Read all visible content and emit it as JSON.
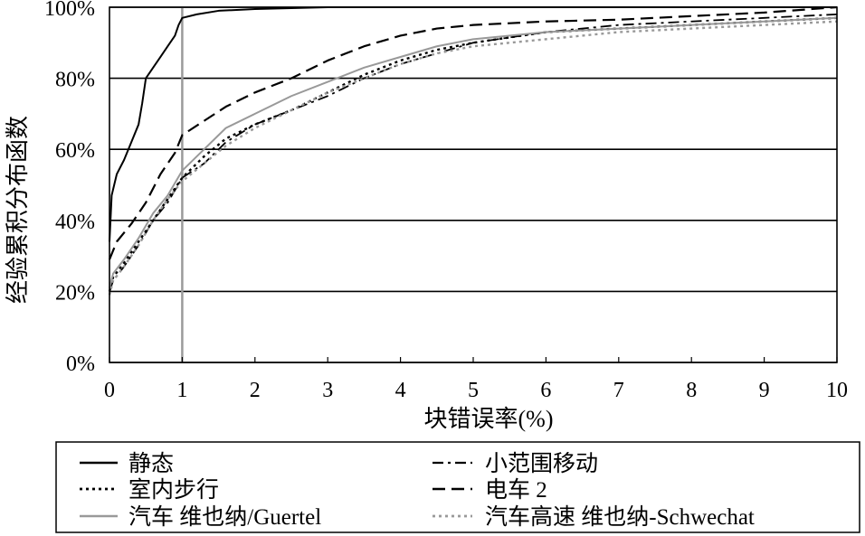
{
  "chart_data": {
    "type": "line",
    "title": "",
    "xlabel": "块错误率(%)",
    "ylabel": "经验累积分布函数",
    "xlim": [
      0,
      10
    ],
    "ylim": [
      0,
      100
    ],
    "x_ticks": [
      "0",
      "1",
      "2",
      "3",
      "4",
      "5",
      "6",
      "7",
      "8",
      "9",
      "10"
    ],
    "y_ticks": [
      "0%",
      "20%",
      "40%",
      "60%",
      "80%",
      "100%"
    ],
    "grid": "horizontal",
    "reference_line_x": 1,
    "legend_position": "bottom",
    "series": [
      {
        "name": "静态",
        "style": "solid",
        "color": "#000000",
        "x": [
          0,
          0.03,
          0.1,
          0.2,
          0.3,
          0.4,
          0.45,
          0.5,
          0.6,
          0.7,
          0.8,
          0.9,
          0.95,
          1.0,
          1.2,
          1.5,
          2,
          3,
          10
        ],
        "y": [
          34,
          47,
          53,
          57,
          62,
          67,
          73,
          80,
          83,
          86,
          89,
          92,
          95,
          97,
          98,
          99,
          99.5,
          100,
          100
        ]
      },
      {
        "name": "小范围移动",
        "style": "dashdot",
        "color": "#000000",
        "x": [
          0,
          0.05,
          0.2,
          0.4,
          0.6,
          0.8,
          1.0,
          1.3,
          1.6,
          2.0,
          2.5,
          3.0,
          3.5,
          4.0,
          4.5,
          5,
          6,
          7,
          8,
          9,
          10
        ],
        "y": [
          20,
          23,
          27,
          33,
          40,
          45,
          52,
          56,
          62,
          67,
          71,
          75,
          80,
          84,
          87,
          90,
          93,
          95,
          96,
          97,
          98
        ]
      },
      {
        "name": "室内步行",
        "style": "dotted",
        "color": "#000000",
        "x": [
          0,
          0.05,
          0.2,
          0.4,
          0.6,
          0.8,
          1.0,
          1.3,
          1.6,
          2.0,
          2.5,
          3.0,
          3.5,
          4.0,
          4.5,
          5,
          6,
          7,
          8,
          9,
          10
        ],
        "y": [
          20,
          24,
          28,
          34,
          40,
          46,
          52,
          58,
          63,
          67,
          71,
          76,
          81,
          85,
          88,
          90,
          93,
          94,
          95,
          96,
          97
        ]
      },
      {
        "name": "电车 2",
        "style": "dashed",
        "color": "#000000",
        "x": [
          0,
          0.1,
          0.3,
          0.5,
          0.7,
          0.9,
          1.0,
          1.3,
          1.6,
          2.0,
          2.5,
          3.0,
          3.5,
          4.0,
          4.5,
          5,
          6,
          7,
          8,
          9,
          10
        ],
        "y": [
          29,
          34,
          39,
          45,
          53,
          59,
          64,
          68,
          72,
          76,
          80,
          85,
          89,
          92,
          94,
          95,
          96,
          96.5,
          97.5,
          98.5,
          100
        ]
      },
      {
        "name": "汽车 维也纳/Guertel",
        "style": "solid",
        "color": "#999999",
        "x": [
          0,
          0.05,
          0.2,
          0.4,
          0.6,
          0.8,
          1.0,
          1.3,
          1.6,
          2.0,
          2.5,
          3.0,
          3.5,
          4.0,
          4.5,
          5,
          6,
          7,
          8,
          9,
          10
        ],
        "y": [
          21,
          25,
          29,
          35,
          42,
          47,
          54,
          60,
          66,
          70,
          75,
          79,
          83,
          86,
          89,
          91,
          93,
          94,
          95,
          96,
          97
        ]
      },
      {
        "name": "汽车高速 维也纳-Schwechat",
        "style": "dotted",
        "color": "#999999",
        "x": [
          0,
          0.05,
          0.2,
          0.4,
          0.6,
          0.8,
          1.0,
          1.3,
          1.6,
          2.0,
          2.5,
          3.0,
          3.5,
          4.0,
          4.5,
          5,
          6,
          7,
          8,
          9,
          10
        ],
        "y": [
          19,
          23,
          27,
          33,
          40,
          46,
          51,
          56,
          61,
          66,
          71,
          76,
          80,
          84,
          87,
          89,
          91,
          93,
          94,
          95,
          96
        ]
      }
    ]
  }
}
